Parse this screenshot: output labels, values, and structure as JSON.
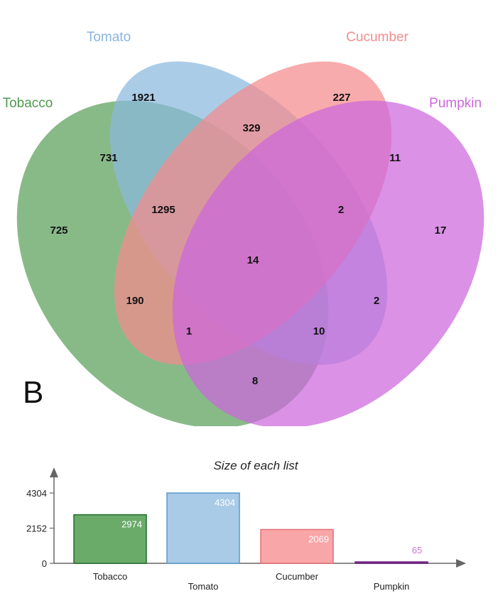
{
  "panel_label": "B",
  "venn": {
    "sets": [
      {
        "name": "Tobacco",
        "color": "#5aa05a",
        "label_color": "#4f9a4f"
      },
      {
        "name": "Tomato",
        "color": "#8ab8de",
        "label_color": "#8ab4de"
      },
      {
        "name": "Cucumber",
        "color": "#f58a8e",
        "label_color": "#f28d90"
      },
      {
        "name": "Pumpkin",
        "color": "#cc66dd",
        "label_color": "#cf66dd"
      }
    ],
    "regions": [
      {
        "sets": [
          "Tomato"
        ],
        "count": "1921"
      },
      {
        "sets": [
          "Cucumber"
        ],
        "count": "227"
      },
      {
        "sets": [
          "Tomato",
          "Cucumber"
        ],
        "count": "329"
      },
      {
        "sets": [
          "Tobacco",
          "Tomato"
        ],
        "count": "731"
      },
      {
        "sets": [
          "Cucumber",
          "Pumpkin"
        ],
        "count": "11"
      },
      {
        "sets": [
          "Tobacco"
        ],
        "count": "725"
      },
      {
        "sets": [
          "Tobacco",
          "Tomato",
          "Cucumber"
        ],
        "count": "1295"
      },
      {
        "sets": [
          "Tomato",
          "Cucumber",
          "Pumpkin"
        ],
        "count": "2"
      },
      {
        "sets": [
          "Pumpkin"
        ],
        "count": "17"
      },
      {
        "sets": [
          "Tobacco",
          "Tomato",
          "Cucumber",
          "Pumpkin"
        ],
        "count": "14"
      },
      {
        "sets": [
          "Tobacco",
          "Cucumber"
        ],
        "count": "190"
      },
      {
        "sets": [
          "Tomato",
          "Pumpkin"
        ],
        "count": "2"
      },
      {
        "sets": [
          "Tobacco",
          "Cucumber",
          "Pumpkin"
        ],
        "count": "1"
      },
      {
        "sets": [
          "Tobacco",
          "Tomato",
          "Pumpkin"
        ],
        "count": "10"
      },
      {
        "sets": [
          "Tobacco",
          "Pumpkin"
        ],
        "count": "8"
      }
    ]
  },
  "chart_data": {
    "type": "bar",
    "title": "Size of each list",
    "categories": [
      "Tobacco",
      "Tomato",
      "Cucumber",
      "Pumpkin"
    ],
    "values": [
      2974,
      4304,
      2069,
      65
    ],
    "ylim": [
      0,
      4304
    ],
    "yticks": [
      "0",
      "2152",
      "4304"
    ],
    "colors": [
      "#6aab6a",
      "#a9cbe8",
      "#f9a6a8",
      "#8a3a9a"
    ],
    "border_colors": [
      "#1f6b2a",
      "#5a9ac8",
      "#e06f74",
      "#6a1f7a"
    ],
    "label_colors": [
      "#ffffff",
      "#ffffff",
      "#ffffff",
      "#cc77cc"
    ]
  }
}
